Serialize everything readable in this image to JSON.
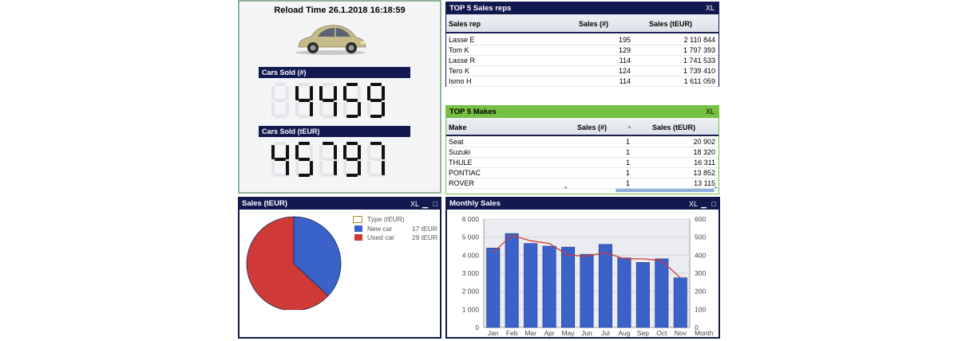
{
  "info_panel": {
    "reload_label": "Reload Time 26.1.2018 16:18:59",
    "cars_sold_title": "Cars Sold (#)",
    "cars_sold_value": "4459",
    "cars_sold_eur_title": "Cars Sold (tEUR)",
    "cars_sold_eur_value": "45797"
  },
  "top_sales_reps": {
    "title": "TOP 5 Sales reps",
    "xl_label": "XL",
    "columns": [
      "Sales rep",
      "Sales (#)",
      "Sales (tEUR)"
    ],
    "rows": [
      [
        "Lasse E",
        "195",
        "2 110 844"
      ],
      [
        "Tom K",
        "129",
        "1 797 393"
      ],
      [
        "Lasse R",
        "114",
        "1 741 533"
      ],
      [
        "Tero K",
        "124",
        "1 739 410"
      ],
      [
        "Ismo H",
        "114",
        "1 611 059"
      ]
    ]
  },
  "top_makes": {
    "title": "TOP 5 Makes",
    "xl_label": "XL",
    "columns": [
      "Make",
      "Sales (#)",
      "Sales (tEUR)"
    ],
    "rows": [
      [
        "Seat",
        "1",
        "20 902"
      ],
      [
        "Suzuki",
        "1",
        "18 320"
      ],
      [
        "THULE",
        "1",
        "16 311"
      ],
      [
        "PONTIAC",
        "1",
        "13 852"
      ],
      [
        "ROVER",
        "1",
        "13 115"
      ]
    ]
  },
  "sales_pie": {
    "title": "Sales (tEUR)",
    "xl_label": "XL",
    "legend_title": "Type (tEUR)",
    "items": [
      {
        "label": "New car",
        "value": "17 tEUR"
      },
      {
        "label": "Used car",
        "value": "29 tEUR"
      }
    ]
  },
  "monthly_sales": {
    "title": "Monthly Sales",
    "xl_label": "XL"
  },
  "colors": {
    "navy": "#12194f",
    "green_header": "#76c043",
    "new_car": "#3a62c8",
    "used_car": "#d03a36",
    "bar": "#3a62c8",
    "line": "#d03a36"
  },
  "chart_data": [
    {
      "type": "pie",
      "title": "Sales (tEUR)",
      "legend_title": "Type (tEUR)",
      "categories": [
        "New car",
        "Used car"
      ],
      "values": [
        17,
        29
      ],
      "legend_position": "top-right"
    },
    {
      "type": "bar",
      "title": "Monthly Sales",
      "categories": [
        "Jan",
        "Feb",
        "Mar",
        "Apr",
        "May",
        "Jun",
        "Jul",
        "Aug",
        "Sep",
        "Oct",
        "Nov"
      ],
      "xlabel": "Month",
      "ylim": [
        0,
        6000
      ],
      "y_ticks": [
        "0",
        "1 000",
        "2 000",
        "3 000",
        "4 000",
        "5 000",
        "6 000"
      ],
      "y2lim": [
        0,
        600
      ],
      "y2_ticks": [
        "0",
        "100",
        "200",
        "300",
        "400",
        "500",
        "600"
      ],
      "series": [
        {
          "type": "bar",
          "axis": "left",
          "values": [
            4400,
            5200,
            4650,
            4500,
            4450,
            4050,
            4600,
            3850,
            3600,
            3800,
            2750
          ]
        },
        {
          "type": "line",
          "axis": "right",
          "values": [
            415,
            510,
            480,
            465,
            400,
            395,
            415,
            380,
            380,
            370,
            275
          ]
        }
      ],
      "grid": true
    }
  ]
}
